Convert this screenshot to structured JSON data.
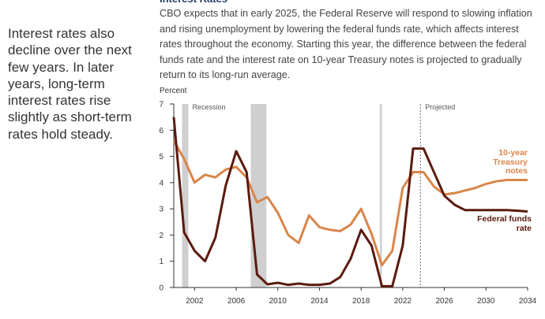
{
  "sidebar": {
    "text": "Interest rates also decline over the next few years. In later years, long-term interest rates rise slightly as short-term rates hold steady."
  },
  "chart_data": {
    "type": "line",
    "title": "Interest Rates",
    "subtitle": "CBO expects that in early 2025, the Federal Reserve will respond to slowing inflation and rising unemployment by lowering the federal funds rate, which affects interest rates throughout the economy. Starting this year, the difference between the federal funds rate and the interest rate on 10-year Treasury notes is projected to gradually return to its long-run average.",
    "y_label": "Percent",
    "xlim": [
      2000,
      2034
    ],
    "xticks": [
      2002,
      2006,
      2010,
      2014,
      2018,
      2022,
      2026,
      2030,
      2034
    ],
    "ylim": [
      0,
      7
    ],
    "yticks": [
      0,
      1,
      2,
      3,
      4,
      5,
      6,
      7
    ],
    "recession_label": "Recession",
    "recessions": [
      [
        2000.8,
        2001.4
      ],
      [
        2007.4,
        2008.9
      ],
      [
        2019.8,
        2020.0
      ]
    ],
    "projected_label": "Projected",
    "projected_start": 2023.7,
    "series": [
      {
        "name": "10-year Treasury notes",
        "color": "#d9854a",
        "x": [
          2000,
          2001,
          2002,
          2003,
          2004,
          2005,
          2006,
          2007,
          2008,
          2009,
          2010,
          2011,
          2012,
          2013,
          2014,
          2015,
          2016,
          2017,
          2018,
          2019,
          2020,
          2021,
          2022,
          2023,
          2024,
          2025,
          2026,
          2027,
          2028,
          2029,
          2030,
          2031,
          2032,
          2033,
          2034
        ],
        "values": [
          5.6,
          4.9,
          4.0,
          4.3,
          4.2,
          4.5,
          4.6,
          4.2,
          3.25,
          3.45,
          2.85,
          2.0,
          1.7,
          2.75,
          2.3,
          2.2,
          2.15,
          2.4,
          3.0,
          2.05,
          0.85,
          1.4,
          3.8,
          4.4,
          4.4,
          3.85,
          3.55,
          3.6,
          3.7,
          3.8,
          3.95,
          4.05,
          4.1,
          4.1,
          4.1
        ]
      },
      {
        "name": "Federal funds rate",
        "color": "#5b1a0e",
        "x": [
          2000,
          2001,
          2002,
          2003,
          2004,
          2005,
          2006,
          2007,
          2008,
          2009,
          2010,
          2011,
          2012,
          2013,
          2014,
          2015,
          2016,
          2017,
          2018,
          2019,
          2020,
          2021,
          2022,
          2023,
          2024,
          2025,
          2026,
          2027,
          2028,
          2029,
          2030,
          2031,
          2032,
          2033,
          2034
        ],
        "values": [
          6.5,
          2.1,
          1.4,
          1.0,
          1.9,
          3.9,
          5.2,
          4.4,
          0.5,
          0.12,
          0.18,
          0.1,
          0.15,
          0.1,
          0.1,
          0.15,
          0.4,
          1.1,
          2.2,
          1.6,
          0.05,
          0.05,
          1.6,
          5.3,
          5.3,
          4.4,
          3.5,
          3.15,
          2.95,
          2.95,
          2.95,
          2.95,
          2.95,
          2.93,
          2.9
        ]
      }
    ]
  }
}
